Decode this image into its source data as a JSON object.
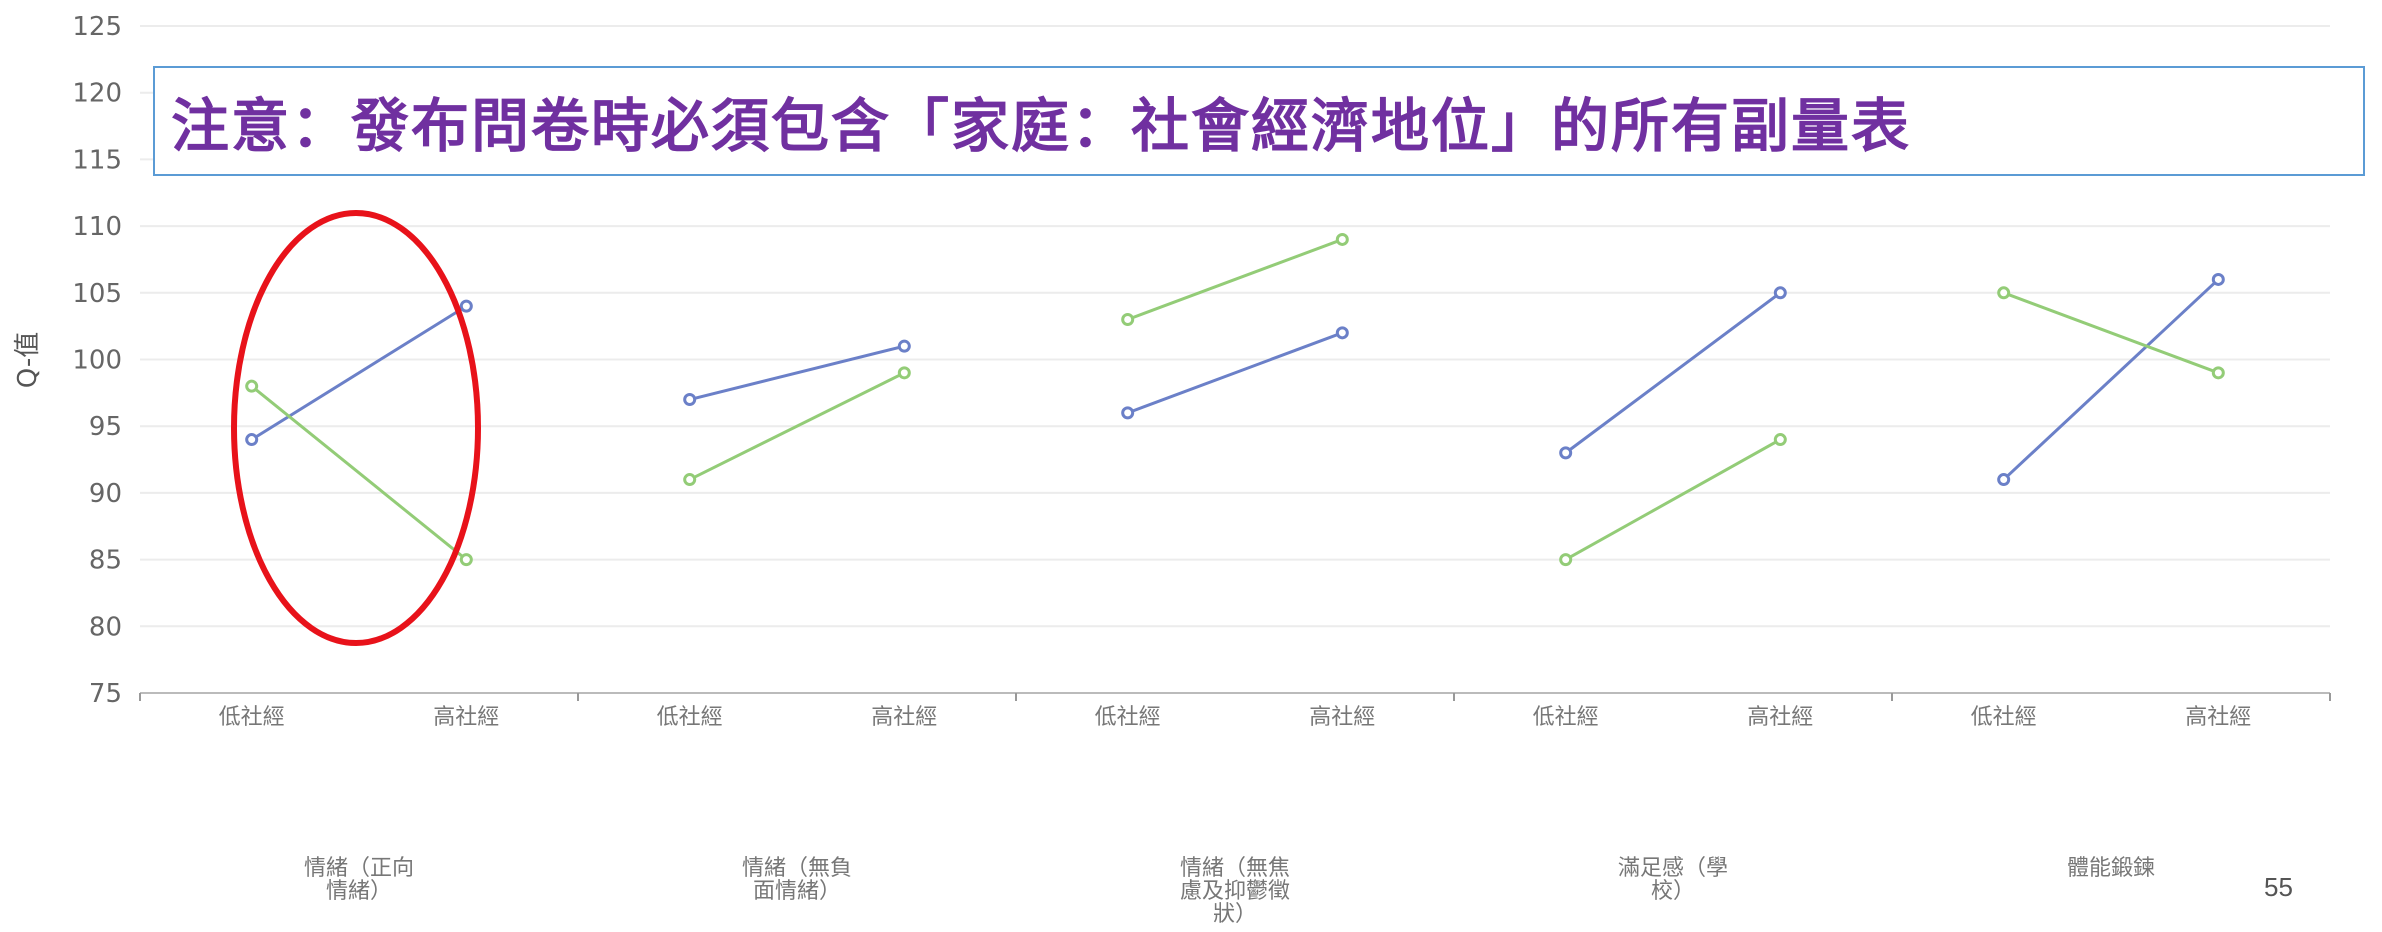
{
  "notice": {
    "text": "注意：發布問卷時必須包含「家庭：社會經濟地位」的所有副量表"
  },
  "page_number": "55",
  "highlight": {
    "color": "#e8121a",
    "target_group": "情緒（正向情緒）"
  },
  "chart_data": {
    "type": "line",
    "ylabel": "Q-值",
    "ylim": [
      75,
      125
    ],
    "yticks": [
      75,
      80,
      85,
      90,
      95,
      100,
      105,
      110,
      115,
      120,
      125
    ],
    "grid": true,
    "groups": [
      {
        "label_lines": [
          "情緒（正向",
          "情緒）"
        ],
        "categories": [
          "低社經",
          "高社經"
        ],
        "series": [
          {
            "color": "#6b80c8",
            "values": [
              94,
              104
            ]
          },
          {
            "color": "#93cc77",
            "values": [
              98,
              85
            ]
          }
        ]
      },
      {
        "label_lines": [
          "情緒（無負",
          "面情緒）"
        ],
        "categories": [
          "低社經",
          "高社經"
        ],
        "series": [
          {
            "color": "#6b80c8",
            "values": [
              97,
              101
            ]
          },
          {
            "color": "#93cc77",
            "values": [
              91,
              99
            ]
          }
        ]
      },
      {
        "label_lines": [
          "情緒（無焦",
          "慮及抑鬱徵",
          "狀）"
        ],
        "categories": [
          "低社經",
          "高社經"
        ],
        "series": [
          {
            "color": "#6b80c8",
            "values": [
              96,
              102
            ]
          },
          {
            "color": "#93cc77",
            "values": [
              103,
              109
            ]
          }
        ]
      },
      {
        "label_lines": [
          "滿足感（學",
          "校）"
        ],
        "categories": [
          "低社經",
          "高社經"
        ],
        "series": [
          {
            "color": "#6b80c8",
            "values": [
              93,
              105
            ]
          },
          {
            "color": "#93cc77",
            "values": [
              85,
              94
            ]
          }
        ]
      },
      {
        "label_lines": [
          "體能鍛鍊"
        ],
        "categories": [
          "低社經",
          "高社經"
        ],
        "series": [
          {
            "color": "#6b80c8",
            "values": [
              91,
              106
            ]
          },
          {
            "color": "#93cc77",
            "values": [
              105,
              99
            ]
          }
        ]
      }
    ]
  }
}
